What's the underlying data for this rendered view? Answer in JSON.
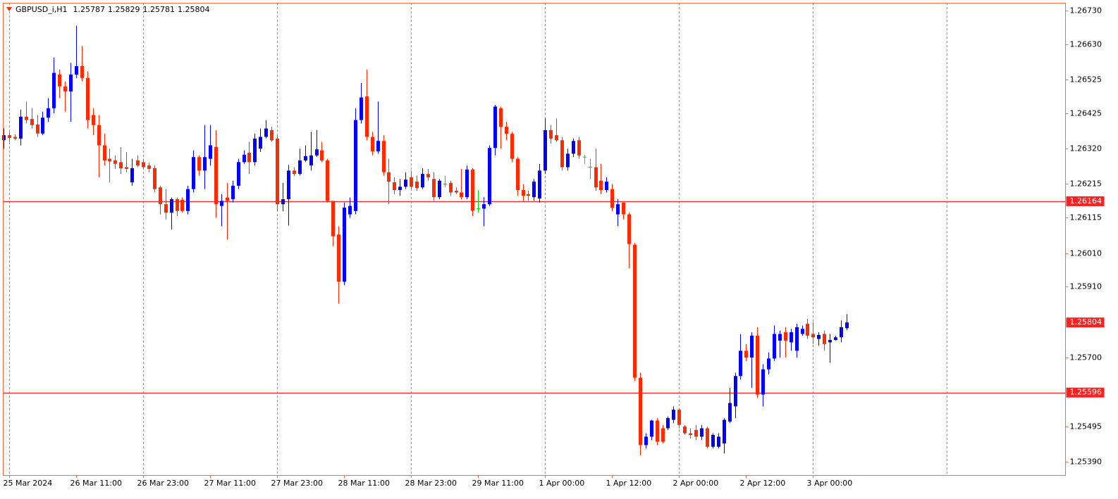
{
  "chart_data": {
    "type": "candlestick",
    "title": "GBPUSD_i,H1",
    "bull_color": "#0000ff",
    "bear_color": "#ff2a00",
    "doji_color": "#00dd00",
    "grid": true,
    "grid_color": "#ff6a3d",
    "level_color": "#ff2020",
    "ylim": [
      1.25351,
      1.26753
    ],
    "yticks": [
      {
        "value": 1.2673,
        "label": "1.26730"
      },
      {
        "value": 1.2663,
        "label": "1.26630"
      },
      1.26525,
      1.26425,
      {
        "value": 1.2632,
        "label": "1.26320"
      },
      1.26215,
      1.26115,
      {
        "value": 1.2601,
        "label": "1.26010"
      },
      {
        "value": 1.2591,
        "label": "1.25910"
      },
      {
        "value": 1.257,
        "label": "1.25700"
      },
      1.25495,
      {
        "value": 1.2539,
        "label": "1.25390"
      }
    ],
    "levels": [
      1.26164,
      1.25596
    ],
    "categories": [
      null,
      "25 Mar 2024",
      null,
      null,
      null,
      null,
      null,
      null,
      null,
      null,
      null,
      null,
      null,
      "26 Mar 11:00",
      null,
      null,
      null,
      null,
      null,
      null,
      null,
      null,
      null,
      null,
      null,
      "26 Mar 23:00",
      null,
      null,
      null,
      null,
      null,
      null,
      null,
      null,
      null,
      null,
      null,
      "27 Mar 11:00",
      null,
      null,
      null,
      null,
      null,
      null,
      null,
      null,
      null,
      null,
      null,
      "27 Mar 23:00",
      null,
      null,
      null,
      null,
      null,
      null,
      null,
      null,
      null,
      null,
      null,
      "28 Mar 11:00",
      null,
      null,
      null,
      null,
      null,
      null,
      null,
      null,
      null,
      null,
      null,
      "28 Mar 23:00",
      null,
      null,
      null,
      null,
      null,
      null,
      null,
      null,
      null,
      null,
      null,
      "29 Mar 11:00",
      null,
      null,
      null,
      null,
      null,
      null,
      null,
      null,
      null,
      null,
      null,
      "1 Apr 00:00",
      null,
      null,
      null,
      null,
      null,
      null,
      null,
      null,
      null,
      null,
      null,
      "1 Apr 12:00",
      null,
      null,
      null,
      null,
      null,
      null,
      null,
      null,
      null,
      null,
      null,
      "2 Apr 00:00",
      null,
      null,
      null,
      null,
      null,
      null,
      null,
      null,
      null,
      null,
      null,
      "2 Apr 12:00",
      null,
      null,
      null,
      null,
      null,
      null,
      null,
      null,
      null,
      null,
      null,
      "3 Apr 00:00",
      null,
      null,
      null,
      null,
      null,
      null
    ],
    "open": [
      1.26345,
      1.2636,
      1.26355,
      1.2635,
      1.26415,
      1.26408,
      1.26392,
      1.26365,
      1.26412,
      1.2644,
      1.2654,
      1.26505,
      1.2649,
      1.2654,
      1.26565,
      1.2653,
      1.2642,
      1.2639,
      1.2633,
      1.2629,
      1.26285,
      1.2628,
      1.26265,
      1.2622,
      1.26285,
      1.2628,
      1.2627,
      1.26262,
      1.26205,
      1.26155,
      1.2613,
      1.2617,
      1.26168,
      1.26135,
      1.262,
      1.26295,
      1.26255,
      1.2629,
      1.26325,
      1.2615,
      1.26175,
      1.2617,
      1.2621,
      1.2628,
      1.26308,
      1.2628,
      1.2632,
      1.26355,
      1.26375,
      1.2635,
      1.26155,
      1.2617,
      1.26255,
      1.26245,
      1.26285,
      1.2627,
      1.263,
      1.26315,
      1.26285,
      1.26165,
      1.26065,
      1.25925,
      1.26125,
      1.26135,
      1.26405,
      1.26475,
      1.26355,
      1.26312,
      1.26343,
      1.2625,
      1.2622,
      1.26197,
      1.26207,
      1.26235,
      1.26222,
      1.26205,
      1.26245,
      1.2623,
      1.26176,
      1.26215,
      1.26218,
      1.26195,
      1.2619,
      1.26176,
      1.26258,
      1.26142,
      1.26142,
      1.26155,
      1.26322,
      1.2644,
      1.26385,
      1.26364,
      1.2629,
      1.26197,
      1.26185,
      1.26176,
      1.26172,
      1.26255,
      1.26375,
      1.2636,
      1.26345,
      1.26265,
      1.26305,
      1.26345,
      1.26295,
      1.26265,
      1.26265,
      1.26225,
      1.26197,
      1.262,
      1.26125,
      1.2616,
      1.26125,
      1.26035,
      1.2564,
      1.2544,
      1.25465,
      1.25513,
      1.2549,
      1.2549,
      1.25515,
      1.25545,
      1.25495,
      1.25475,
      1.25485,
      1.25465,
      1.2549,
      1.25435,
      1.25435,
      1.25445,
      1.2551,
      1.25555,
      1.25645,
      1.2572,
      1.257,
      1.25765,
      1.2559,
      1.25665,
      1.25697,
      1.2575,
      1.25775,
      1.25745,
      1.2572,
      1.2577,
      1.258,
      1.2577,
      1.25755,
      1.2577,
      1.25745,
      1.25752,
      1.2576,
      1.25787
    ],
    "high": [
      1.2638,
      1.2637,
      1.26362,
      1.26436,
      1.2646,
      1.2644,
      1.2642,
      1.2643,
      1.2647,
      1.2659,
      1.26555,
      1.2652,
      1.26575,
      1.26685,
      1.26625,
      1.2655,
      1.2644,
      1.2642,
      1.26365,
      1.2632,
      1.263,
      1.26325,
      1.2631,
      1.2629,
      1.263,
      1.2629,
      1.26278,
      1.2627,
      1.2621,
      1.262,
      1.26175,
      1.26175,
      1.26175,
      1.2621,
      1.26315,
      1.263,
      1.2639,
      1.2639,
      1.26375,
      1.26185,
      1.26218,
      1.26225,
      1.2629,
      1.26315,
      1.2634,
      1.26365,
      1.2638,
      1.26405,
      1.26385,
      1.2636,
      1.26218,
      1.26272,
      1.26265,
      1.2632,
      1.2633,
      1.2637,
      1.26375,
      1.2634,
      1.2629,
      1.26165,
      1.2609,
      1.2616,
      1.26175,
      1.2644,
      1.26515,
      1.26555,
      1.2637,
      1.2646,
      1.2636,
      1.2629,
      1.26235,
      1.2623,
      1.2625,
      1.26255,
      1.2624,
      1.26262,
      1.2626,
      1.2625,
      1.2623,
      1.2624,
      1.26225,
      1.26205,
      1.2626,
      1.2627,
      1.26262,
      1.26197,
      1.26176,
      1.2633,
      1.2645,
      1.26445,
      1.264,
      1.2637,
      1.26295,
      1.26215,
      1.26195,
      1.2623,
      1.26275,
      1.2641,
      1.2639,
      1.2641,
      1.26355,
      1.2632,
      1.2635,
      1.26355,
      1.26302,
      1.2629,
      1.2632,
      1.26275,
      1.26235,
      1.26215,
      1.2617,
      1.2616,
      1.2613,
      1.2604,
      1.25655,
      1.25475,
      1.25515,
      1.2552,
      1.255,
      1.25525,
      1.25555,
      1.2555,
      1.255,
      1.2549,
      1.255,
      1.255,
      1.25495,
      1.25475,
      1.25475,
      1.2552,
      1.2561,
      1.25655,
      1.2577,
      1.2574,
      1.25775,
      1.2579,
      1.2568,
      1.25715,
      1.25795,
      1.2578,
      1.2579,
      1.25785,
      1.258,
      1.25795,
      1.25815,
      1.25805,
      1.25775,
      1.2578,
      1.2577,
      1.25765,
      1.2581,
      1.25829
    ],
    "low": [
      1.2632,
      1.2634,
      1.26345,
      1.2633,
      1.26395,
      1.2638,
      1.26355,
      1.2636,
      1.264,
      1.26425,
      1.2647,
      1.2643,
      1.264,
      1.2653,
      1.2652,
      1.2638,
      1.2636,
      1.26235,
      1.2627,
      1.2622,
      1.2626,
      1.26245,
      1.2625,
      1.2621,
      1.26265,
      1.26258,
      1.2625,
      1.2619,
      1.26125,
      1.2611,
      1.2608,
      1.2612,
      1.2613,
      1.26125,
      1.2619,
      1.2624,
      1.262,
      1.2627,
      1.26115,
      1.2609,
      1.2605,
      1.2616,
      1.262,
      1.26275,
      1.26245,
      1.2627,
      1.2631,
      1.2635,
      1.2634,
      1.26134,
      1.26134,
      1.26092,
      1.26238,
      1.2624,
      1.2628,
      1.26255,
      1.26295,
      1.2628,
      1.2616,
      1.2603,
      1.2586,
      1.25915,
      1.26115,
      1.26125,
      1.26395,
      1.26345,
      1.263,
      1.26305,
      1.2624,
      1.26155,
      1.26185,
      1.2618,
      1.262,
      1.262,
      1.26195,
      1.262,
      1.26225,
      1.26165,
      1.2617,
      1.26205,
      1.2618,
      1.26185,
      1.2617,
      1.2617,
      1.2612,
      1.2613,
      1.2609,
      1.2615,
      1.263,
      1.2632,
      1.26345,
      1.2628,
      1.2618,
      1.26165,
      1.26165,
      1.26165,
      1.2616,
      1.26245,
      1.26335,
      1.2634,
      1.26255,
      1.26255,
      1.26295,
      1.2629,
      1.26275,
      1.2623,
      1.26195,
      1.26185,
      1.2619,
      1.26134,
      1.2609,
      1.2611,
      1.25965,
      1.2563,
      1.2541,
      1.2543,
      1.25455,
      1.2544,
      1.25445,
      1.25485,
      1.25505,
      1.2549,
      1.2547,
      1.2546,
      1.25455,
      1.25455,
      1.2543,
      1.2543,
      1.2543,
      1.25415,
      1.25505,
      1.2552,
      1.25635,
      1.2569,
      1.2561,
      1.2558,
      1.25555,
      1.2565,
      1.2569,
      1.257,
      1.257,
      1.2572,
      1.257,
      1.25765,
      1.25755,
      1.2574,
      1.25735,
      1.2572,
      1.25685,
      1.2575,
      1.25745,
      1.25781
    ],
    "close": [
      1.2636,
      1.26352,
      1.2635,
      1.26415,
      1.26405,
      1.2639,
      1.26365,
      1.26412,
      1.2644,
      1.26545,
      1.26505,
      1.2649,
      1.2654,
      1.26565,
      1.2653,
      1.26405,
      1.2639,
      1.2633,
      1.26285,
      1.26282,
      1.26275,
      1.26262,
      1.2626,
      1.26262,
      1.2627,
      1.26265,
      1.2626,
      1.262,
      1.26155,
      1.2613,
      1.2617,
      1.26135,
      1.26135,
      1.262,
      1.26295,
      1.26255,
      1.26295,
      1.2633,
      1.26155,
      1.26165,
      1.26165,
      1.2621,
      1.2628,
      1.26302,
      1.2628,
      1.2635,
      1.26355,
      1.2638,
      1.26345,
      1.26155,
      1.2617,
      1.26255,
      1.26245,
      1.26285,
      1.26298,
      1.263,
      1.26318,
      1.26285,
      1.26165,
      1.2606,
      1.25925,
      1.26145,
      1.2615,
      1.26405,
      1.26472,
      1.26355,
      1.26312,
      1.26343,
      1.2625,
      1.26222,
      1.26197,
      1.26207,
      1.26228,
      1.26207,
      1.26203,
      1.26245,
      1.26235,
      1.26176,
      1.26225,
      1.26215,
      1.2619,
      1.2619,
      1.26176,
      1.26258,
      1.26136,
      1.26142,
      1.26155,
      1.26322,
      1.26445,
      1.26385,
      1.26364,
      1.2629,
      1.26197,
      1.2618,
      1.2618,
      1.26222,
      1.26255,
      1.26375,
      1.2635,
      1.26345,
      1.26265,
      1.26305,
      1.26343,
      1.263,
      1.26295,
      1.26265,
      1.26205,
      1.26197,
      1.26222,
      1.26145,
      1.26155,
      1.26125,
      1.26037,
      1.2564,
      1.2544,
      1.25465,
      1.25513,
      1.2545,
      1.2545,
      1.2552,
      1.25545,
      1.255,
      1.25475,
      1.2547,
      1.25465,
      1.2549,
      1.25435,
      1.2547,
      1.25465,
      1.25515,
      1.25565,
      1.25645,
      1.2572,
      1.257,
      1.25765,
      1.2559,
      1.25665,
      1.25697,
      1.2577,
      1.2577,
      1.2575,
      1.25775,
      1.2579,
      1.25785,
      1.25765,
      1.2576,
      1.25767,
      1.2574,
      1.25752,
      1.2576,
      1.2579,
      1.25804
    ]
  }
}
